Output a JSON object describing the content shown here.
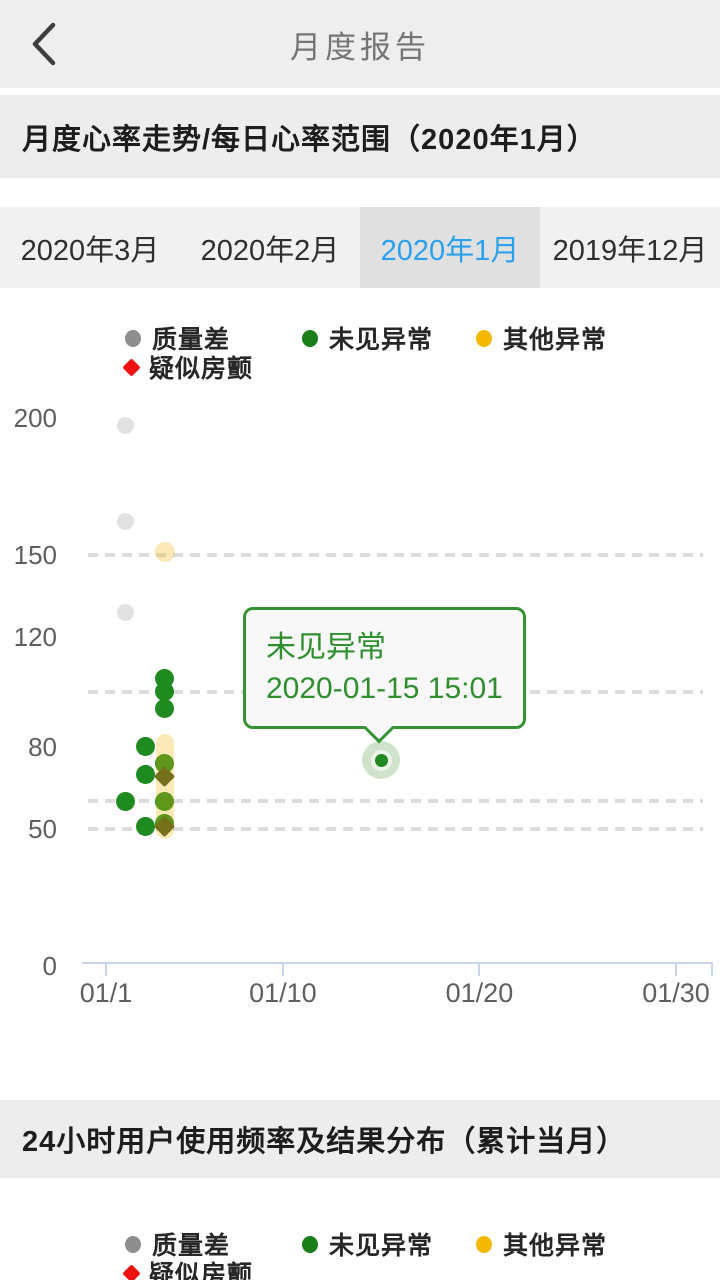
{
  "header": {
    "title": "月度报告",
    "back_icon": "chevron-left"
  },
  "section1": {
    "title": "月度心率走势/每日心率范围（2020年1月）"
  },
  "tabs": [
    {
      "label": "2020年3月",
      "selected": false
    },
    {
      "label": "2020年2月",
      "selected": false
    },
    {
      "label": "2020年1月",
      "selected": true
    },
    {
      "label": "2019年12月",
      "selected": false
    }
  ],
  "colors": {
    "tab_selected_text": "#2aa1ee",
    "tab_selected_bg": "#e0e0e0",
    "section_band_bg": "#ededed",
    "tooltip_green": "#2f8f2f",
    "axis_line": "#c9d5ea",
    "gridline": "#dcdcdc"
  },
  "legend": {
    "items": [
      {
        "label": "质量差",
        "color": "#8e8e8e",
        "shape": "circle"
      },
      {
        "label": "未见异常",
        "color": "#1b7e1b",
        "shape": "circle"
      },
      {
        "label": "其他异常",
        "color": "#f5b800",
        "shape": "circle"
      },
      {
        "label": "疑似房颤",
        "color": "#ee1111",
        "shape": "diamond"
      }
    ]
  },
  "chart_data": {
    "type": "scatter",
    "title": "月度心率走势/每日心率范围（2020年1月）",
    "x": {
      "labels": [
        "01/1",
        "01/10",
        "01/20",
        "01/30"
      ],
      "label_days": [
        1,
        10,
        20,
        30
      ],
      "range_days": [
        1,
        31.8
      ]
    },
    "y": {
      "tick_labels": [
        "200",
        "150",
        "120",
        "80",
        "50",
        "0"
      ],
      "tick_values": [
        200,
        150,
        120,
        80,
        50,
        0
      ],
      "range": [
        0,
        200
      ],
      "reference_lines": [
        150,
        100,
        60,
        50
      ],
      "grid": "dashed"
    },
    "legend_position": "top",
    "series": [
      {
        "name": "质量差",
        "marker": "circle",
        "color": "#e2e2e2",
        "points": [
          {
            "day": 2,
            "value": 197
          },
          {
            "day": 2,
            "value": 162
          },
          {
            "day": 2,
            "value": 129
          }
        ]
      },
      {
        "name": "未见异常",
        "marker": "circle",
        "color": "#1f8a1f",
        "points": [
          {
            "day": 2,
            "value": 60
          },
          {
            "day": 3,
            "value": 80
          },
          {
            "day": 3,
            "value": 70
          },
          {
            "day": 3,
            "value": 51
          },
          {
            "day": 4,
            "value": 105
          },
          {
            "day": 4,
            "value": 100
          },
          {
            "day": 4,
            "value": 94
          },
          {
            "day": 4,
            "value": 74
          },
          {
            "day": 4,
            "value": 60
          },
          {
            "day": 4,
            "value": 52
          },
          {
            "day": 15,
            "value": 75,
            "highlight": true
          }
        ]
      },
      {
        "name": "其他异常",
        "marker": "circle",
        "color": "rgba(243,182,18,0.30)",
        "points": [
          {
            "day": 4,
            "value": 151
          }
        ],
        "range_bars": [
          {
            "day": 4,
            "from": 50,
            "to": 81
          }
        ]
      },
      {
        "name": "疑似房颤",
        "marker": "diamond",
        "color": "#75701c",
        "points": [
          {
            "day": 4,
            "value": 69
          },
          {
            "day": 4,
            "value": 51
          }
        ]
      }
    ],
    "tooltip": {
      "line1": "未见异常",
      "line2": "2020-01-15 15:01",
      "target": {
        "day": 15,
        "value": 75
      }
    }
  },
  "section2": {
    "title": "24小时用户使用频率及结果分布（累计当月）"
  }
}
